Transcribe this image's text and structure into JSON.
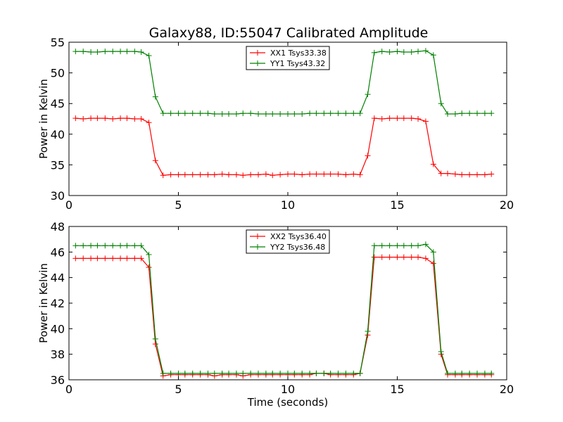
{
  "figure": {
    "title": "Galaxy88, ID:55047 Calibrated Amplitude"
  },
  "chart_data": [
    {
      "type": "line",
      "title": "Galaxy88, ID:55047 Calibrated Amplitude",
      "xlabel": "",
      "ylabel": "Power in Kelvin",
      "xlim": [
        0,
        20
      ],
      "ylim": [
        30,
        55
      ],
      "xticks": [
        "0",
        "5",
        "10",
        "15",
        "20"
      ],
      "yticks": [
        "30",
        "35",
        "40",
        "45",
        "50",
        "55"
      ],
      "grid": false,
      "legend_position": "top-center",
      "x": [
        0.3,
        0.65,
        1.0,
        1.3,
        1.65,
        2.0,
        2.35,
        2.65,
        3.0,
        3.3,
        3.65,
        3.95,
        4.3,
        4.65,
        5.0,
        5.3,
        5.65,
        6.0,
        6.35,
        6.65,
        7.0,
        7.3,
        7.65,
        7.95,
        8.3,
        8.65,
        9.0,
        9.3,
        9.65,
        10.0,
        10.3,
        10.65,
        11.0,
        11.3,
        11.65,
        11.95,
        12.3,
        12.65,
        13.0,
        13.3,
        13.65,
        13.95,
        14.3,
        14.65,
        15.0,
        15.3,
        15.65,
        15.95,
        16.3,
        16.65,
        17.0,
        17.3,
        17.65,
        17.95,
        18.3,
        18.65,
        19.0,
        19.3
      ],
      "series": [
        {
          "name": "XX1 Tsys33.38",
          "color": "#ff0000",
          "values": [
            42.6,
            42.5,
            42.6,
            42.6,
            42.6,
            42.5,
            42.6,
            42.6,
            42.5,
            42.5,
            41.9,
            35.7,
            33.3,
            33.4,
            33.4,
            33.4,
            33.4,
            33.4,
            33.4,
            33.4,
            33.5,
            33.4,
            33.4,
            33.3,
            33.4,
            33.4,
            33.5,
            33.3,
            33.4,
            33.5,
            33.5,
            33.4,
            33.5,
            33.5,
            33.5,
            33.5,
            33.5,
            33.4,
            33.5,
            33.4,
            36.5,
            42.6,
            42.5,
            42.6,
            42.6,
            42.6,
            42.6,
            42.5,
            42.1,
            35.1,
            33.6,
            33.6,
            33.5,
            33.4,
            33.4,
            33.4,
            33.4,
            33.5
          ]
        },
        {
          "name": "YY1 Tsys43.32",
          "color": "#008000",
          "values": [
            53.5,
            53.5,
            53.4,
            53.4,
            53.5,
            53.5,
            53.5,
            53.5,
            53.5,
            53.4,
            52.8,
            46.1,
            43.4,
            43.4,
            43.4,
            43.4,
            43.4,
            43.4,
            43.4,
            43.3,
            43.3,
            43.3,
            43.3,
            43.4,
            43.4,
            43.3,
            43.3,
            43.3,
            43.3,
            43.3,
            43.3,
            43.3,
            43.4,
            43.4,
            43.4,
            43.4,
            43.4,
            43.4,
            43.4,
            43.4,
            46.5,
            53.3,
            53.5,
            53.4,
            53.5,
            53.4,
            53.4,
            53.5,
            53.6,
            52.9,
            45.0,
            43.3,
            43.3,
            43.4,
            43.4,
            43.4,
            43.4,
            43.4
          ]
        }
      ]
    },
    {
      "type": "line",
      "title": "",
      "xlabel": "Time (seconds)",
      "ylabel": "Power in Kelvin",
      "xlim": [
        0,
        20
      ],
      "ylim": [
        36,
        48
      ],
      "xticks": [
        "0",
        "5",
        "10",
        "15",
        "20"
      ],
      "yticks": [
        "36",
        "38",
        "40",
        "42",
        "44",
        "46",
        "48"
      ],
      "grid": false,
      "legend_position": "top-center",
      "x": [
        0.3,
        0.65,
        1.0,
        1.3,
        1.65,
        2.0,
        2.35,
        2.65,
        3.0,
        3.3,
        3.65,
        3.95,
        4.3,
        4.65,
        5.0,
        5.3,
        5.65,
        6.0,
        6.35,
        6.65,
        7.0,
        7.3,
        7.65,
        7.95,
        8.3,
        8.65,
        9.0,
        9.3,
        9.65,
        10.0,
        10.3,
        10.65,
        11.0,
        11.3,
        11.65,
        11.95,
        12.3,
        12.65,
        13.0,
        13.3,
        13.65,
        13.95,
        14.3,
        14.65,
        15.0,
        15.3,
        15.65,
        15.95,
        16.3,
        16.65,
        17.0,
        17.3,
        17.65,
        17.95,
        18.3,
        18.65,
        19.0,
        19.3
      ],
      "series": [
        {
          "name": "XX2 Tsys36.40",
          "color": "#ff0000",
          "values": [
            45.5,
            45.5,
            45.5,
            45.5,
            45.5,
            45.5,
            45.5,
            45.5,
            45.5,
            45.5,
            44.8,
            38.8,
            36.3,
            36.4,
            36.4,
            36.4,
            36.4,
            36.4,
            36.4,
            36.3,
            36.4,
            36.4,
            36.4,
            36.3,
            36.4,
            36.4,
            36.4,
            36.4,
            36.4,
            36.4,
            36.4,
            36.4,
            36.4,
            36.5,
            36.5,
            36.4,
            36.4,
            36.4,
            36.4,
            36.5,
            39.5,
            45.6,
            45.6,
            45.6,
            45.6,
            45.6,
            45.6,
            45.6,
            45.5,
            45.1,
            38.0,
            36.4,
            36.4,
            36.4,
            36.4,
            36.4,
            36.4,
            36.4
          ]
        },
        {
          "name": "YY2 Tsys36.48",
          "color": "#008000",
          "values": [
            46.5,
            46.5,
            46.5,
            46.5,
            46.5,
            46.5,
            46.5,
            46.5,
            46.5,
            46.5,
            45.8,
            39.2,
            36.5,
            36.5,
            36.5,
            36.5,
            36.5,
            36.5,
            36.5,
            36.5,
            36.5,
            36.5,
            36.5,
            36.5,
            36.5,
            36.5,
            36.5,
            36.5,
            36.5,
            36.5,
            36.5,
            36.5,
            36.5,
            36.5,
            36.5,
            36.5,
            36.5,
            36.5,
            36.5,
            36.5,
            39.8,
            46.5,
            46.5,
            46.5,
            46.5,
            46.5,
            46.5,
            46.5,
            46.6,
            46.0,
            38.2,
            36.5,
            36.5,
            36.5,
            36.5,
            36.5,
            36.5,
            36.5
          ]
        }
      ]
    }
  ]
}
